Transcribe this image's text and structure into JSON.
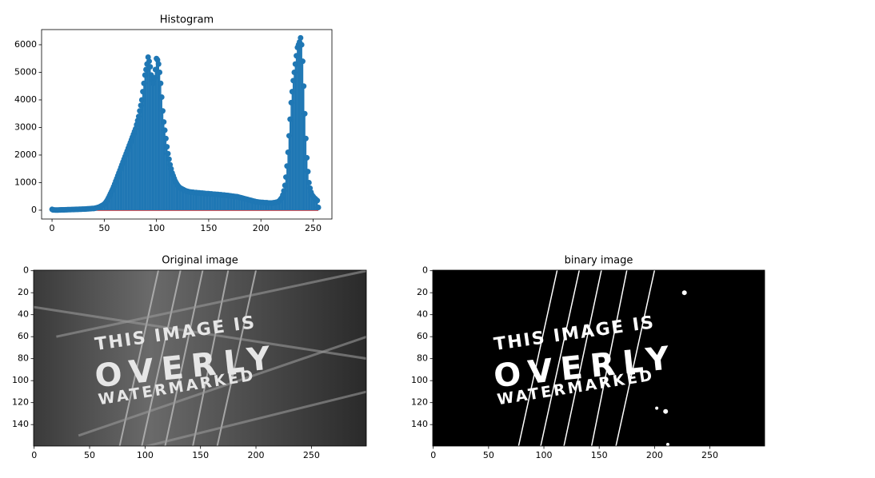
{
  "chart_data": [
    {
      "type": "stem",
      "title": "Histogram",
      "x": [
        0,
        1,
        2,
        3,
        4,
        5,
        6,
        7,
        8,
        9,
        10,
        11,
        12,
        13,
        14,
        15,
        16,
        17,
        18,
        19,
        20,
        21,
        22,
        23,
        24,
        25,
        26,
        27,
        28,
        29,
        30,
        31,
        32,
        33,
        34,
        35,
        36,
        37,
        38,
        39,
        40,
        41,
        42,
        43,
        44,
        45,
        46,
        47,
        48,
        49,
        50,
        51,
        52,
        53,
        54,
        55,
        56,
        57,
        58,
        59,
        60,
        61,
        62,
        63,
        64,
        65,
        66,
        67,
        68,
        69,
        70,
        71,
        72,
        73,
        74,
        75,
        76,
        77,
        78,
        79,
        80,
        81,
        82,
        83,
        84,
        85,
        86,
        87,
        88,
        89,
        90,
        91,
        92,
        93,
        94,
        95,
        96,
        97,
        98,
        99,
        100,
        101,
        102,
        103,
        104,
        105,
        106,
        107,
        108,
        109,
        110,
        111,
        112,
        113,
        114,
        115,
        116,
        117,
        118,
        119,
        120,
        121,
        122,
        123,
        124,
        125,
        126,
        127,
        128,
        129,
        130,
        131,
        132,
        133,
        134,
        135,
        136,
        137,
        138,
        139,
        140,
        141,
        142,
        143,
        144,
        145,
        146,
        147,
        148,
        149,
        150,
        151,
        152,
        153,
        154,
        155,
        156,
        157,
        158,
        159,
        160,
        161,
        162,
        163,
        164,
        165,
        166,
        167,
        168,
        169,
        170,
        171,
        172,
        173,
        174,
        175,
        176,
        177,
        178,
        179,
        180,
        181,
        182,
        183,
        184,
        185,
        186,
        187,
        188,
        189,
        190,
        191,
        192,
        193,
        194,
        195,
        196,
        197,
        198,
        199,
        200,
        201,
        202,
        203,
        204,
        205,
        206,
        207,
        208,
        209,
        210,
        211,
        212,
        213,
        214,
        215,
        216,
        217,
        218,
        219,
        220,
        221,
        222,
        223,
        224,
        225,
        226,
        227,
        228,
        229,
        230,
        231,
        232,
        233,
        234,
        235,
        236,
        237,
        238,
        239,
        240,
        241,
        242,
        243,
        244,
        245,
        246,
        247,
        248,
        249,
        250,
        251,
        252,
        253,
        254,
        255
      ],
      "values": [
        30,
        10,
        8,
        6,
        5,
        5,
        6,
        8,
        10,
        12,
        12,
        14,
        15,
        16,
        18,
        20,
        20,
        22,
        22,
        24,
        25,
        26,
        28,
        30,
        30,
        32,
        34,
        35,
        36,
        38,
        40,
        40,
        42,
        45,
        48,
        50,
        52,
        55,
        60,
        65,
        60,
        70,
        80,
        90,
        100,
        110,
        130,
        150,
        170,
        190,
        220,
        260,
        310,
        370,
        440,
        520,
        600,
        680,
        760,
        850,
        950,
        1050,
        1150,
        1250,
        1350,
        1450,
        1550,
        1650,
        1750,
        1850,
        1950,
        2050,
        2150,
        2250,
        2350,
        2450,
        2550,
        2650,
        2750,
        2850,
        2950,
        3100,
        3250,
        3400,
        3600,
        3800,
        4000,
        4300,
        4600,
        4900,
        5100,
        5300,
        5550,
        5400,
        5200,
        4900,
        4700,
        4600,
        4800,
        5100,
        5500,
        5450,
        5300,
        5000,
        4600,
        4100,
        3600,
        3200,
        2900,
        2600,
        2300,
        2050,
        1850,
        1650,
        1500,
        1350,
        1250,
        1150,
        1050,
        980,
        920,
        870,
        830,
        800,
        780,
        760,
        740,
        720,
        700,
        690,
        680,
        670,
        660,
        660,
        650,
        650,
        640,
        640,
        640,
        630,
        630,
        630,
        620,
        620,
        620,
        610,
        610,
        600,
        600,
        600,
        600,
        590,
        590,
        590,
        580,
        580,
        580,
        570,
        570,
        570,
        560,
        560,
        560,
        550,
        550,
        550,
        540,
        540,
        530,
        530,
        520,
        520,
        510,
        510,
        500,
        500,
        490,
        490,
        480,
        470,
        460,
        450,
        440,
        430,
        420,
        410,
        400,
        390,
        380,
        370,
        360,
        350,
        340,
        330,
        320,
        310,
        300,
        300,
        290,
        290,
        280,
        280,
        280,
        270,
        270,
        270,
        270,
        260,
        260,
        260,
        260,
        260,
        270,
        270,
        280,
        290,
        300,
        320,
        350,
        400,
        450,
        550,
        700,
        900,
        1200,
        1600,
        2100,
        2700,
        3300,
        3900,
        4300,
        4700,
        5000,
        5300,
        5600,
        5900,
        6000,
        6100,
        6250,
        6000,
        5400,
        4500,
        3500,
        2600,
        1900,
        1400,
        1000,
        800,
        650,
        550,
        500,
        450,
        420,
        380,
        350,
        100
      ],
      "color": "#1f77b4",
      "baseline_color": "#d62728",
      "xlim": [
        -10,
        268
      ],
      "ylim": [
        -320,
        6550
      ],
      "xticks": [
        0,
        50,
        100,
        150,
        200,
        250
      ],
      "yticks": [
        0,
        1000,
        2000,
        3000,
        4000,
        5000,
        6000
      ]
    },
    {
      "type": "image",
      "title": "Original image",
      "mode": "gray",
      "image_text": [
        "THIS IMAGE IS",
        "OVERLY",
        "WATERMARKED"
      ],
      "xlim": [
        -0.5,
        299.5
      ],
      "ylim": [
        159.5,
        -0.5
      ],
      "xticks": [
        0,
        50,
        100,
        150,
        200,
        250
      ],
      "yticks": [
        0,
        20,
        40,
        60,
        80,
        100,
        120,
        140
      ]
    },
    {
      "type": "image",
      "title": "binary image",
      "mode": "binary",
      "image_text": [
        "THIS IMAGE IS",
        "OVERLY",
        "WATERMARKED"
      ],
      "xlim": [
        -0.5,
        299.5
      ],
      "ylim": [
        159.5,
        -0.5
      ],
      "xticks": [
        0,
        50,
        100,
        150,
        200,
        250
      ],
      "yticks": [
        0,
        20,
        40,
        60,
        80,
        100,
        120,
        140
      ]
    }
  ]
}
